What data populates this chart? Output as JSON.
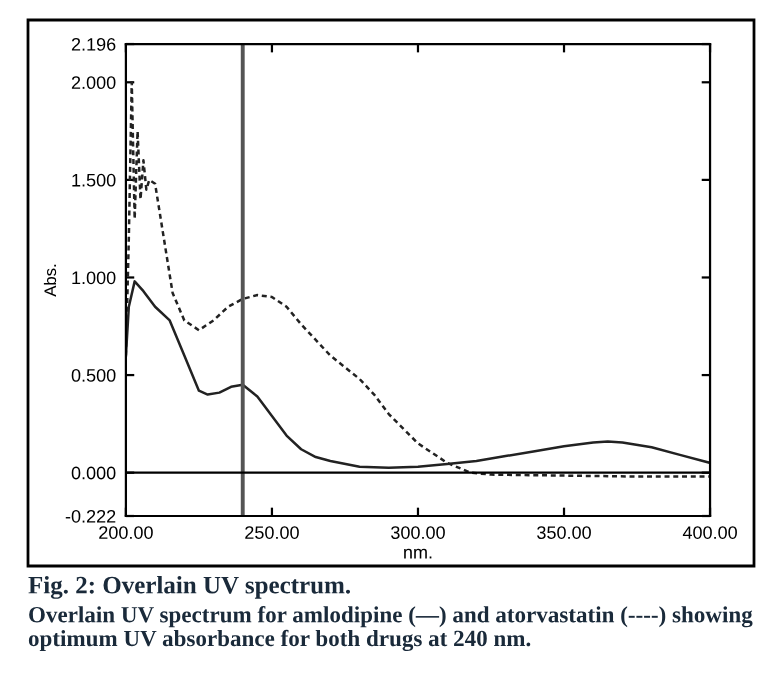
{
  "chart_data": {
    "type": "line",
    "title": "Fig. 2: Overlain UV spectrum.",
    "annotations": [
      "Overlain UV spectrum for amlodipine (—) and atorvastatin (----) showing optimum UV absorbance for both drugs at 240 nm."
    ],
    "xlabel": "nm.",
    "ylabel": "Abs.",
    "xlim": [
      200,
      400
    ],
    "xticks": [
      {
        "value": 200,
        "label": "200.00"
      },
      {
        "value": 250,
        "label": "250.00"
      },
      {
        "value": 300,
        "label": "300.00"
      },
      {
        "value": 350,
        "label": "350.00"
      },
      {
        "value": 400,
        "label": "400.00"
      }
    ],
    "ylim": [
      -0.222,
      2.196
    ],
    "yticks": [
      -0.222,
      {
        "value": 0,
        "label": "0.000"
      },
      {
        "value": 0.5,
        "label": "0.500"
      },
      {
        "value": 1,
        "label": "1.000"
      },
      {
        "value": 1.5,
        "label": "1.500"
      },
      {
        "value": 2,
        "label": "2.000"
      },
      2.196
    ],
    "grid": false,
    "legend": false,
    "marker": "none",
    "ref_lines": [
      {
        "axis": "x",
        "value": 240,
        "color": "#555555",
        "line_style": "solid"
      },
      {
        "axis": "y",
        "value": 0,
        "color": "#000000",
        "line_style": "solid"
      }
    ],
    "series": [
      {
        "color": "#222222",
        "line_style": "solid",
        "x": [
          200,
          201,
          203,
          206,
          210,
          215,
          220,
          225,
          228,
          232,
          236,
          240,
          245,
          250,
          255,
          260,
          265,
          270,
          280,
          290,
          300,
          310,
          320,
          330,
          340,
          350,
          360,
          365,
          370,
          380,
          390,
          400
        ],
        "values": [
          0.6,
          0.85,
          0.98,
          0.93,
          0.85,
          0.78,
          0.6,
          0.42,
          0.4,
          0.41,
          0.44,
          0.45,
          0.39,
          0.29,
          0.19,
          0.12,
          0.08,
          0.06,
          0.03,
          0.025,
          0.03,
          0.045,
          0.06,
          0.085,
          0.11,
          0.135,
          0.155,
          0.16,
          0.155,
          0.13,
          0.09,
          0.05
        ]
      },
      {
        "color": "#222222",
        "line_style": "dashed",
        "x": [
          200,
          201,
          202,
          203,
          204,
          205,
          206,
          207,
          208,
          210,
          213,
          216,
          220,
          225,
          230,
          235,
          240,
          245,
          250,
          255,
          260,
          270,
          280,
          285,
          290,
          300,
          310,
          318,
          325,
          350,
          375,
          400
        ],
        "values": [
          0.6,
          1.2,
          2.0,
          1.3,
          1.75,
          1.4,
          1.6,
          1.45,
          1.5,
          1.48,
          1.2,
          0.92,
          0.78,
          0.73,
          0.78,
          0.85,
          0.89,
          0.91,
          0.9,
          0.85,
          0.76,
          0.6,
          0.48,
          0.4,
          0.3,
          0.15,
          0.05,
          0.0,
          -0.01,
          -0.015,
          -0.02,
          -0.02
        ]
      }
    ]
  }
}
